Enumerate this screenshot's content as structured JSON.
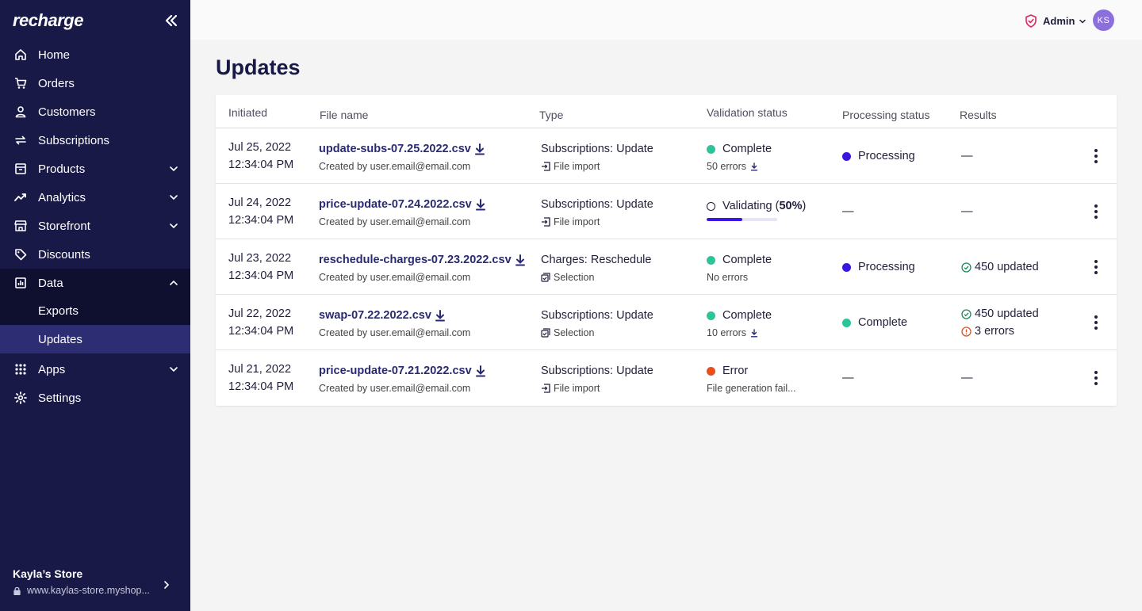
{
  "app": {
    "logo": "recharge"
  },
  "sidebar": {
    "items": [
      {
        "label": "Home",
        "icon": "home-icon"
      },
      {
        "label": "Orders",
        "icon": "cart-icon"
      },
      {
        "label": "Customers",
        "icon": "user-icon"
      },
      {
        "label": "Subscriptions",
        "icon": "repeat-icon"
      },
      {
        "label": "Products",
        "icon": "box-icon"
      },
      {
        "label": "Analytics",
        "icon": "trend-icon"
      },
      {
        "label": "Storefront",
        "icon": "store-icon"
      },
      {
        "label": "Discounts",
        "icon": "tag-icon"
      },
      {
        "label": "Data",
        "icon": "chart-icon"
      },
      {
        "label": "Apps",
        "icon": "grid-icon"
      },
      {
        "label": "Settings",
        "icon": "gear-icon"
      }
    ],
    "data_sub": [
      {
        "label": "Exports"
      },
      {
        "label": "Updates"
      }
    ],
    "store": {
      "name": "Kayla’s Store",
      "url": "www.kaylas-store.myshop..."
    }
  },
  "topbar": {
    "role": "Admin",
    "avatar_initials": "KS"
  },
  "page": {
    "title": "Updates"
  },
  "table": {
    "headers": {
      "initiated": "Initiated",
      "file_name": "File name",
      "type": "Type",
      "validation": "Validation status",
      "processing": "Processing status",
      "results": "Results"
    },
    "rows": [
      {
        "date": "Jul 25, 2022",
        "time": "12:34:04 PM",
        "file": "update-subs-07.25.2022.csv",
        "creator": "Created by user.email@email.com",
        "type": "Subscriptions: Update",
        "source": "File import",
        "validation": "Complete",
        "validation_sub": "50 errors",
        "processing": "Processing",
        "result1": "—",
        "result2": ""
      },
      {
        "date": "Jul 24, 2022",
        "time": "12:34:04 PM",
        "file": "price-update-07.24.2022.csv",
        "creator": "Created by user.email@email.com",
        "type": "Subscriptions: Update",
        "source": "File import",
        "validation": "Validating (",
        "validation_pct": "50%",
        "validation_close": ")",
        "progress": 0.5,
        "processing": "—",
        "result1": "—",
        "result2": ""
      },
      {
        "date": "Jul 23, 2022",
        "time": "12:34:04 PM",
        "file": "reschedule-charges-07.23.2022.csv",
        "creator": "Created by user.email@email.com",
        "type": "Charges: Reschedule",
        "source": "Selection",
        "validation": "Complete",
        "validation_sub": "No errors",
        "processing": "Processing",
        "result1": "450 updated",
        "result2": ""
      },
      {
        "date": "Jul 22, 2022",
        "time": "12:34:04 PM",
        "file": "swap-07.22.2022.csv",
        "creator": "Created by user.email@email.com",
        "type": "Subscriptions: Update",
        "source": "Selection",
        "validation": "Complete",
        "validation_sub": "10 errors",
        "processing": "Complete",
        "result1": "450 updated",
        "result2": "3 errors"
      },
      {
        "date": "Jul 21, 2022",
        "time": "12:34:04 PM",
        "file": "price-update-07.21.2022.csv",
        "creator": "Created by user.email@email.com",
        "type": "Subscriptions: Update",
        "source": "File import",
        "validation": "Error",
        "validation_sub": "File generation fail...",
        "processing": "—",
        "result1": "—",
        "result2": ""
      }
    ]
  },
  "colors": {
    "sidebar": "#191947",
    "accent": "#3b16e0",
    "success": "#2bc59a",
    "error": "#ea4f1b"
  }
}
